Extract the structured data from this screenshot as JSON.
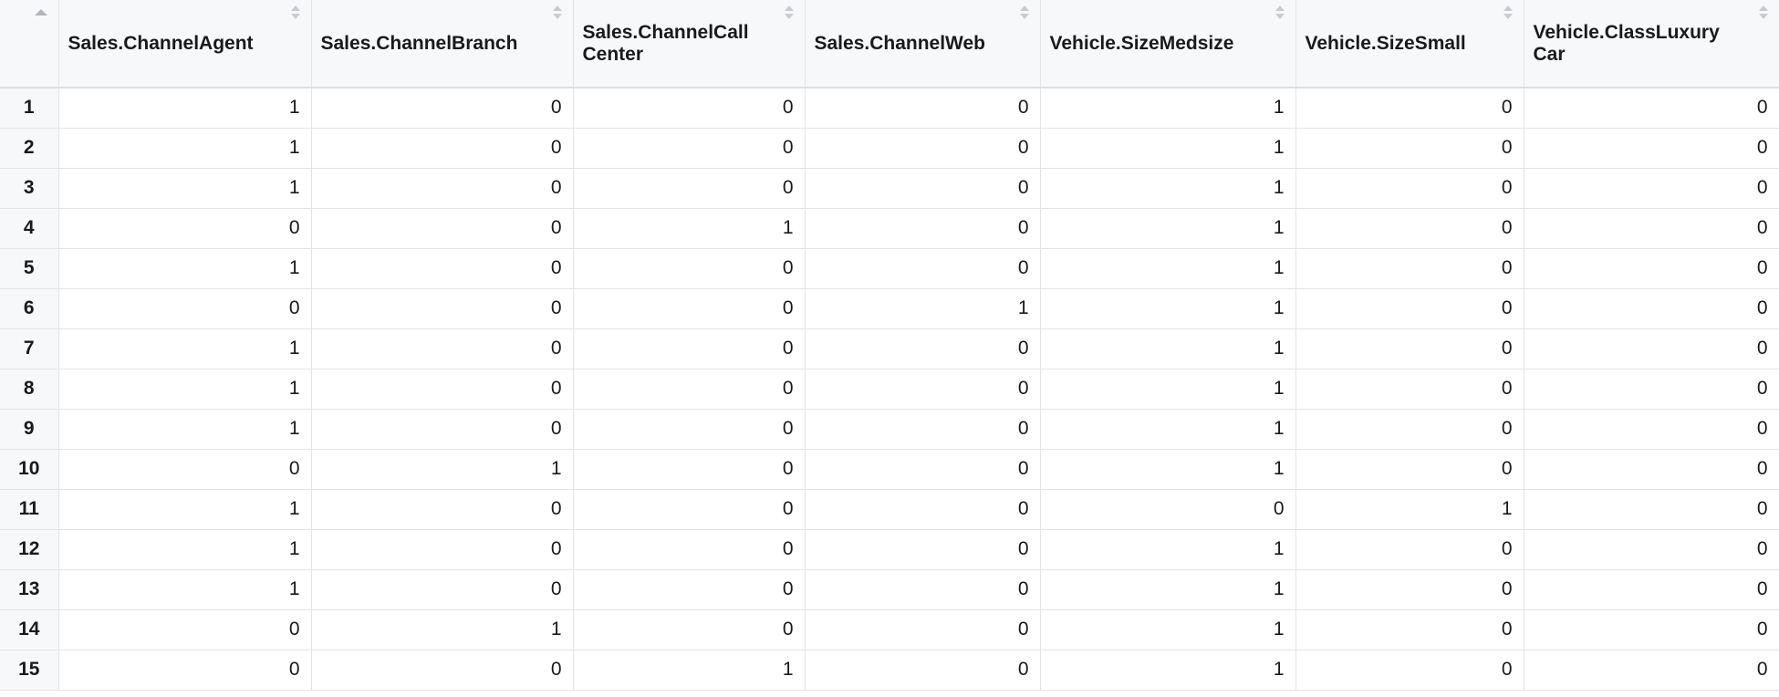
{
  "table": {
    "columns": [
      "Sales.ChannelAgent",
      "Sales.ChannelBranch",
      "Sales.ChannelCall Center",
      "Sales.ChannelWeb",
      "Vehicle.SizeMedsize",
      "Vehicle.SizeSmall",
      "Vehicle.ClassLuxury Car"
    ],
    "sort_indicator": "sort-ascending-icon",
    "rows": [
      {
        "index": "1",
        "cells": [
          "1",
          "0",
          "0",
          "0",
          "1",
          "0",
          "0"
        ]
      },
      {
        "index": "2",
        "cells": [
          "1",
          "0",
          "0",
          "0",
          "1",
          "0",
          "0"
        ]
      },
      {
        "index": "3",
        "cells": [
          "1",
          "0",
          "0",
          "0",
          "1",
          "0",
          "0"
        ]
      },
      {
        "index": "4",
        "cells": [
          "0",
          "0",
          "1",
          "0",
          "1",
          "0",
          "0"
        ]
      },
      {
        "index": "5",
        "cells": [
          "1",
          "0",
          "0",
          "0",
          "1",
          "0",
          "0"
        ]
      },
      {
        "index": "6",
        "cells": [
          "0",
          "0",
          "0",
          "1",
          "1",
          "0",
          "0"
        ]
      },
      {
        "index": "7",
        "cells": [
          "1",
          "0",
          "0",
          "0",
          "1",
          "0",
          "0"
        ]
      },
      {
        "index": "8",
        "cells": [
          "1",
          "0",
          "0",
          "0",
          "1",
          "0",
          "0"
        ]
      },
      {
        "index": "9",
        "cells": [
          "1",
          "0",
          "0",
          "0",
          "1",
          "0",
          "0"
        ]
      },
      {
        "index": "10",
        "cells": [
          "0",
          "1",
          "0",
          "0",
          "1",
          "0",
          "0"
        ]
      },
      {
        "index": "11",
        "cells": [
          "1",
          "0",
          "0",
          "0",
          "0",
          "1",
          "0"
        ]
      },
      {
        "index": "12",
        "cells": [
          "1",
          "0",
          "0",
          "0",
          "1",
          "0",
          "0"
        ]
      },
      {
        "index": "13",
        "cells": [
          "1",
          "0",
          "0",
          "0",
          "1",
          "0",
          "0"
        ]
      },
      {
        "index": "14",
        "cells": [
          "0",
          "1",
          "0",
          "0",
          "1",
          "0",
          "0"
        ]
      },
      {
        "index": "15",
        "cells": [
          "0",
          "0",
          "1",
          "0",
          "1",
          "0",
          "0"
        ]
      }
    ]
  }
}
